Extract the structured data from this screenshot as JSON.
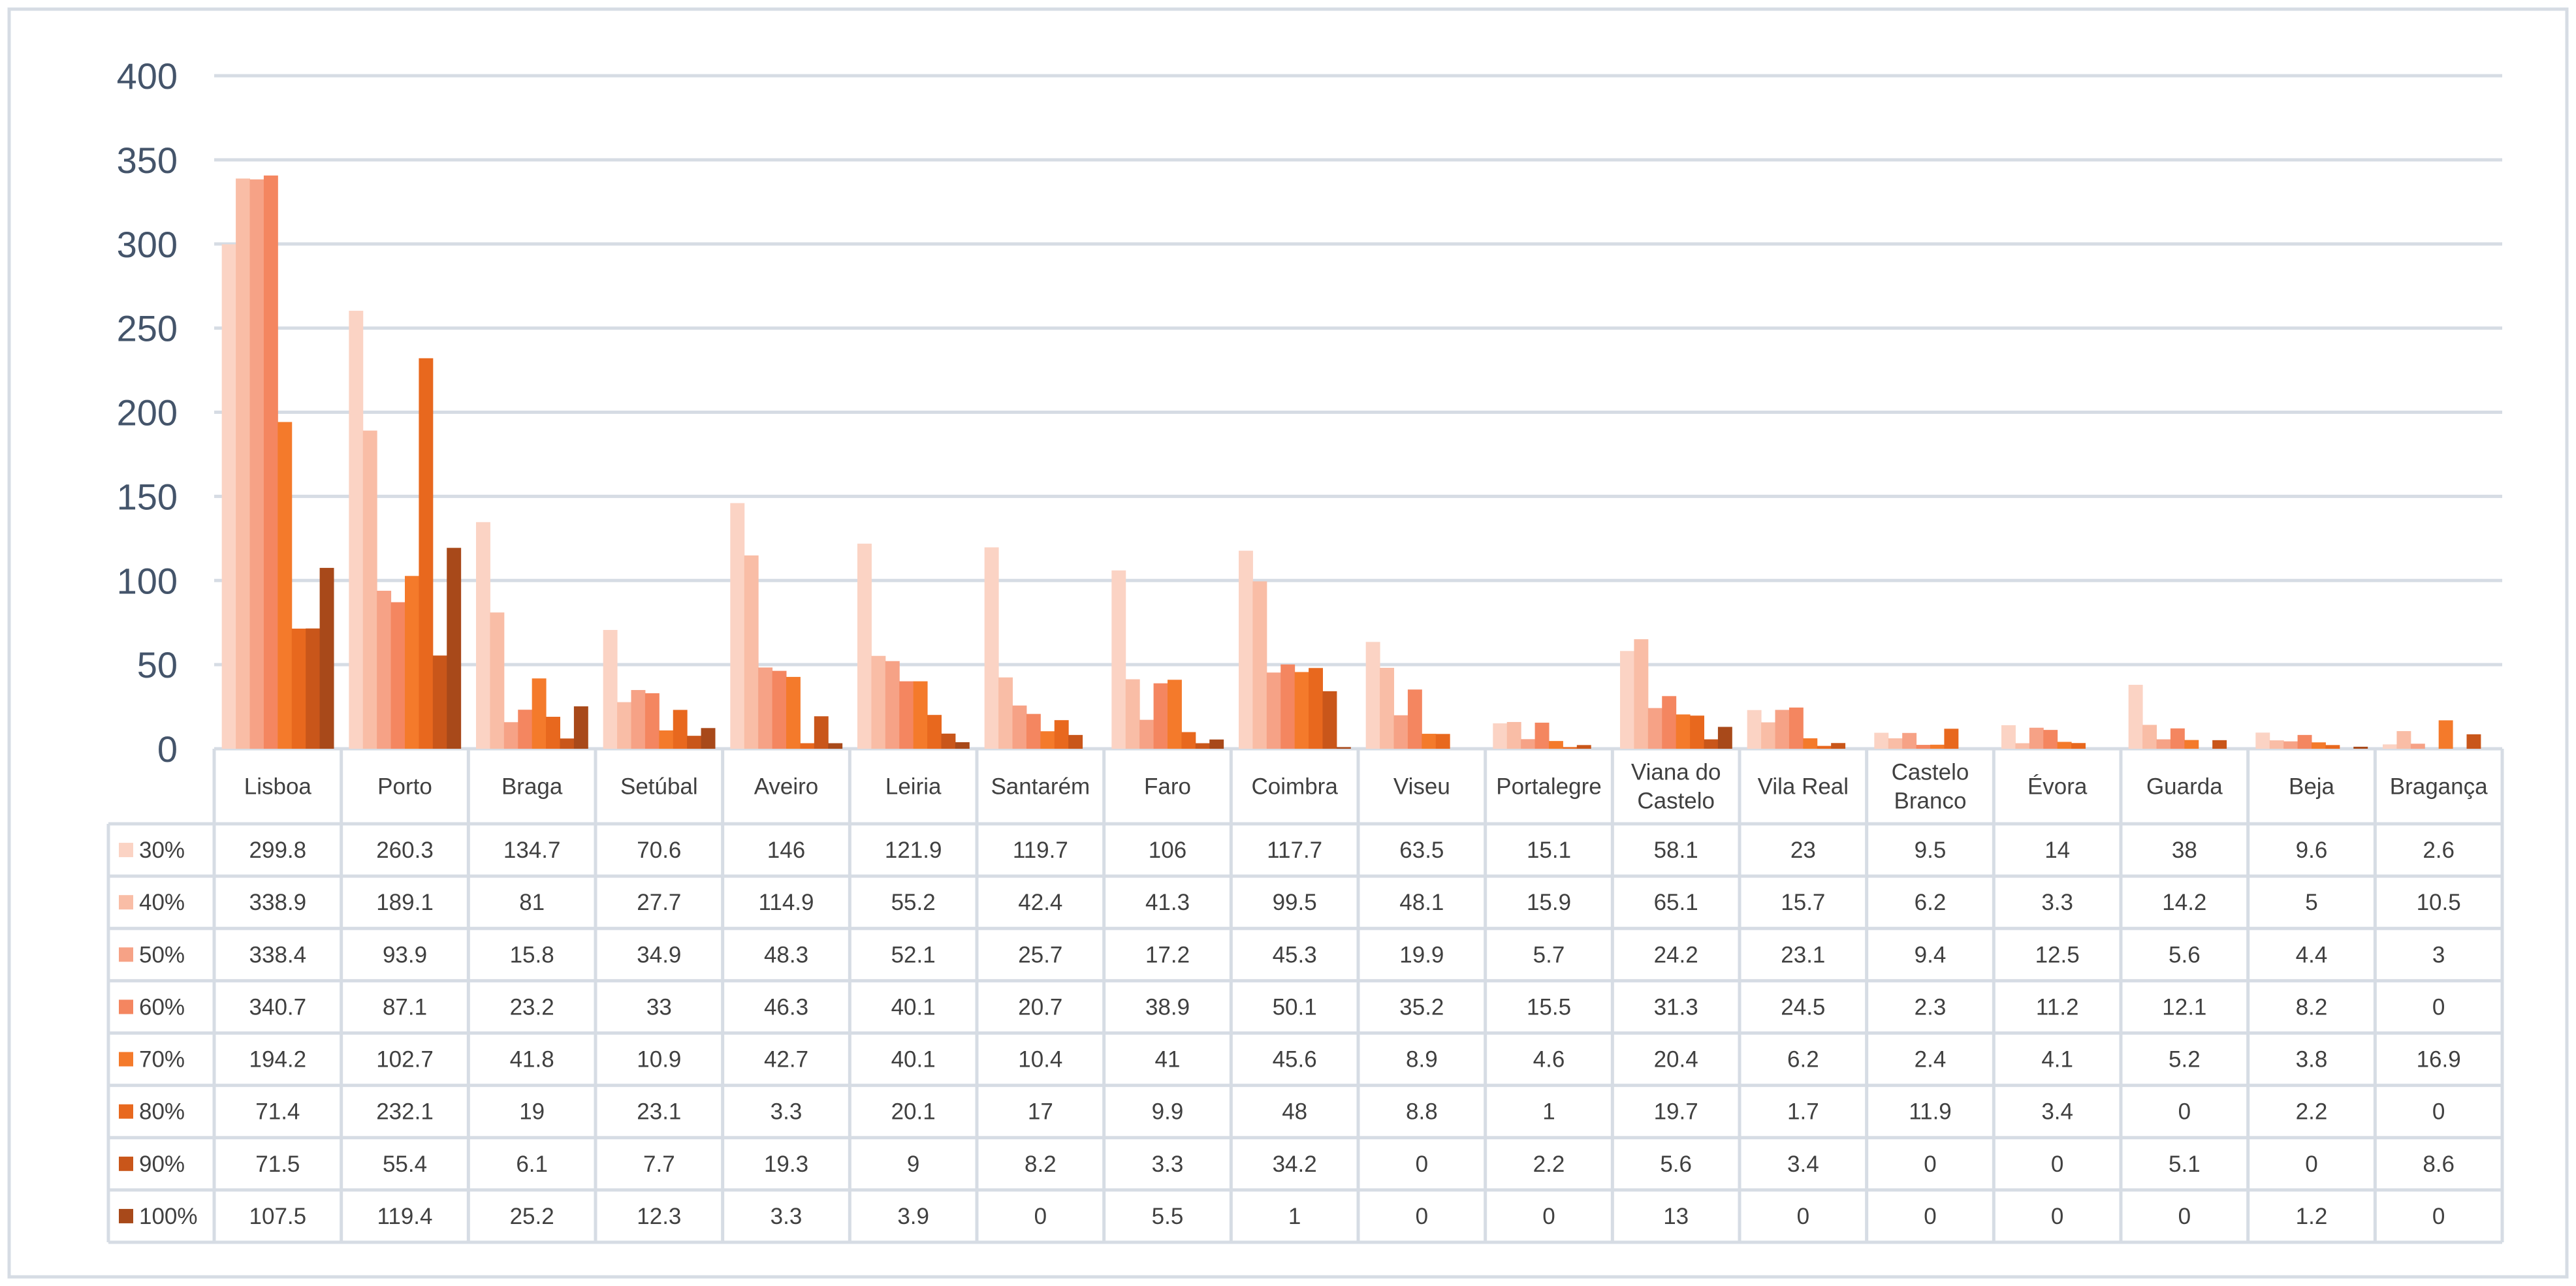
{
  "chart_data": {
    "type": "bar",
    "categories": [
      "Lisboa",
      "Porto",
      "Braga",
      "Setúbal",
      "Aveiro",
      "Leiria",
      "Santarém",
      "Faro",
      "Coimbra",
      "Viseu",
      "Portalegre",
      "Viana do Castelo",
      "Vila Real",
      "Castelo Branco",
      "Évora",
      "Guarda",
      "Beja",
      "Bragança"
    ],
    "series": [
      {
        "name": "30%",
        "color": "#fbd3c4",
        "values": [
          299.8,
          260.3,
          134.7,
          70.6,
          146,
          121.9,
          119.7,
          106,
          117.7,
          63.5,
          15.1,
          58.1,
          23,
          9.5,
          14,
          38,
          9.6,
          2.6
        ]
      },
      {
        "name": "40%",
        "color": "#f9bda6",
        "values": [
          338.9,
          189.1,
          81,
          27.7,
          114.9,
          55.2,
          42.4,
          41.3,
          99.5,
          48.1,
          15.9,
          65.1,
          15.7,
          6.2,
          3.3,
          14.2,
          5,
          10.5
        ]
      },
      {
        "name": "50%",
        "color": "#f6a286",
        "values": [
          338.4,
          93.9,
          15.8,
          34.9,
          48.3,
          52.1,
          25.7,
          17.2,
          45.3,
          19.9,
          5.7,
          24.2,
          23.1,
          9.4,
          12.5,
          5.6,
          4.4,
          3
        ]
      },
      {
        "name": "60%",
        "color": "#f48660",
        "values": [
          340.7,
          87.1,
          23.2,
          33,
          46.3,
          40.1,
          20.7,
          38.9,
          50.1,
          35.2,
          15.5,
          31.3,
          24.5,
          2.3,
          11.2,
          12.1,
          8.2,
          0
        ]
      },
      {
        "name": "70%",
        "color": "#f47a2b",
        "values": [
          194.2,
          102.7,
          41.8,
          10.9,
          42.7,
          40.1,
          10.4,
          41,
          45.6,
          8.9,
          4.6,
          20.4,
          6.2,
          2.4,
          4.1,
          5.2,
          3.8,
          16.9
        ]
      },
      {
        "name": "80%",
        "color": "#e8681e",
        "values": [
          71.4,
          232.1,
          19,
          23.1,
          3.3,
          20.1,
          17,
          9.9,
          48,
          8.8,
          1,
          19.7,
          1.7,
          11.9,
          3.4,
          0,
          2.2,
          0
        ]
      },
      {
        "name": "90%",
        "color": "#c9561a",
        "values": [
          71.5,
          55.4,
          6.1,
          7.7,
          19.3,
          9,
          8.2,
          3.3,
          34.2,
          0,
          2.2,
          5.6,
          3.4,
          0,
          0,
          5.1,
          0,
          8.6
        ]
      },
      {
        "name": "100%",
        "color": "#a8491a",
        "values": [
          107.5,
          119.4,
          25.2,
          12.3,
          3.3,
          3.9,
          0,
          5.5,
          1,
          0,
          0,
          13,
          0,
          0,
          0,
          0,
          1.2,
          0
        ]
      }
    ],
    "yticks": [
      0,
      50,
      100,
      150,
      200,
      250,
      300,
      350,
      400
    ],
    "ylim": [
      0,
      400
    ],
    "grid": true,
    "legend": "data-table"
  }
}
